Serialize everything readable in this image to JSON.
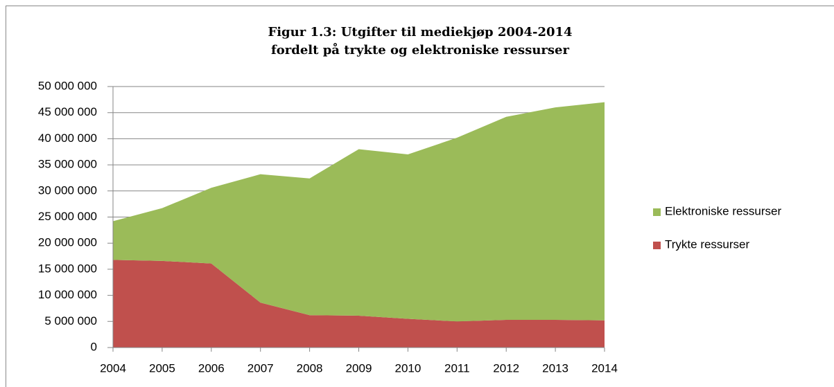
{
  "chart_data": {
    "type": "stacked_area",
    "title": [
      "Figur 1.3: Utgifter til mediekjøp 2004-2014",
      "fordelt på trykte og elektroniske ressurser"
    ],
    "categories": [
      "2004",
      "2005",
      "2006",
      "2007",
      "2008",
      "2009",
      "2010",
      "2011",
      "2012",
      "2013",
      "2014"
    ],
    "series": [
      {
        "name": "Trykte ressurser",
        "color": "#c0504d",
        "values": [
          16800000,
          16600000,
          16100000,
          8600000,
          6200000,
          6100000,
          5500000,
          5000000,
          5300000,
          5300000,
          5200000
        ]
      },
      {
        "name": "Elektroniske ressurser",
        "color": "#9bbb59",
        "values": [
          7400000,
          10100000,
          14500000,
          24600000,
          26200000,
          31900000,
          31500000,
          35200000,
          38900000,
          40700000,
          41800000
        ]
      }
    ],
    "ylim": [
      0,
      50000000
    ],
    "yticks": [
      0,
      {
        "value": 5000000,
        "label": "5 000 000"
      },
      {
        "value": 10000000,
        "label": "10 000 000"
      },
      {
        "value": 15000000,
        "label": "15 000 000"
      },
      {
        "value": 20000000,
        "label": "20 000 000"
      },
      {
        "value": 25000000,
        "label": "25 000 000"
      },
      {
        "value": 30000000,
        "label": "30 000 000"
      },
      {
        "value": 35000000,
        "label": "35 000 000"
      },
      {
        "value": 40000000,
        "label": "40 000 000"
      },
      {
        "value": 45000000,
        "label": "45 000 000"
      },
      {
        "value": 50000000,
        "label": "50 000 000"
      }
    ],
    "grid": true,
    "legend": "right"
  }
}
